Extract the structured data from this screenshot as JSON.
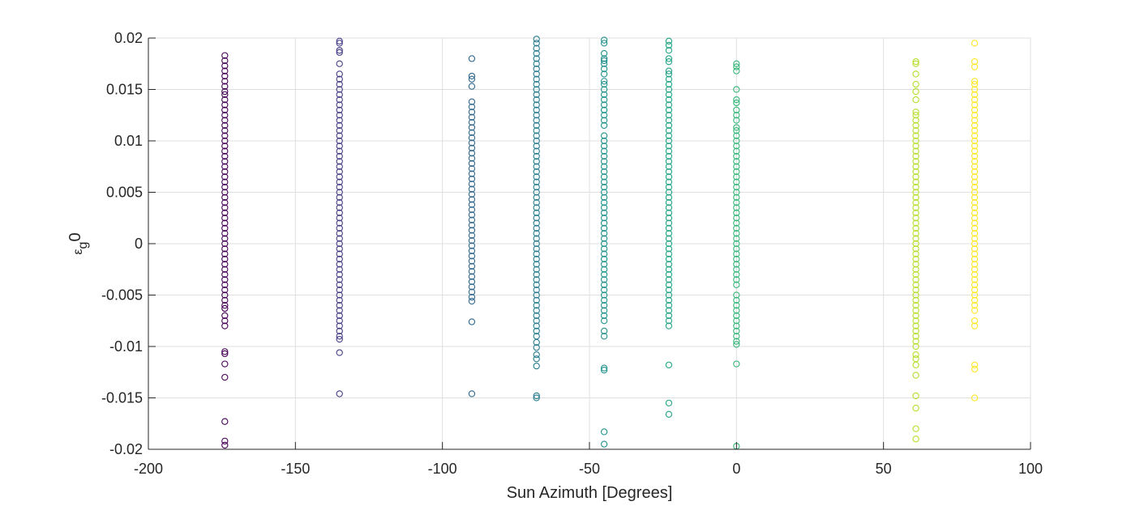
{
  "chart_data": {
    "type": "scatter",
    "title": "",
    "xlabel": "Sun Azimuth [Degrees]",
    "ylabel": {
      "base": "ε",
      "subscript": "g",
      "suffix": "0"
    },
    "xlim": [
      -200,
      100
    ],
    "ylim": [
      -0.02,
      0.02
    ],
    "xticks": [
      -200,
      -150,
      -100,
      -50,
      0,
      50,
      100
    ],
    "xtick_labels": [
      "-200",
      "-150",
      "-100",
      "-50",
      "0",
      "50",
      "100"
    ],
    "yticks": [
      -0.02,
      -0.015,
      -0.01,
      -0.005,
      0,
      0.005,
      0.01,
      0.015,
      0.02
    ],
    "ytick_labels": [
      "-0.02",
      "-0.015",
      "-0.01",
      "-0.005",
      "0",
      "0.005",
      "0.01",
      "0.015",
      "0.02"
    ],
    "grid": true,
    "marker": "open-circle",
    "colormap": "viridis",
    "series": [
      {
        "x": -174,
        "color": "#440154",
        "y": [
          0.0183,
          0.0178,
          0.0173,
          0.0168,
          0.0163,
          0.0158,
          0.0153,
          0.0148,
          0.0145,
          0.014,
          0.0135,
          0.013,
          0.0125,
          0.012,
          0.0115,
          0.011,
          0.0105,
          0.01,
          0.0095,
          0.009,
          0.0085,
          0.008,
          0.0075,
          0.007,
          0.0065,
          0.006,
          0.0055,
          0.005,
          0.0045,
          0.004,
          0.0035,
          0.003,
          0.0025,
          0.002,
          0.0015,
          0.001,
          0.0005,
          0,
          -0.0005,
          -0.001,
          -0.0015,
          -0.002,
          -0.0025,
          -0.003,
          -0.0035,
          -0.004,
          -0.0045,
          -0.005,
          -0.0055,
          -0.006,
          -0.0063,
          -0.007,
          -0.0075,
          -0.008,
          -0.0105,
          -0.0107,
          -0.0117,
          -0.013,
          -0.0173,
          -0.0192,
          -0.0196
        ]
      },
      {
        "x": -135,
        "color": "#433d84",
        "y": [
          0.0197,
          0.0195,
          0.0188,
          0.0186,
          0.0175,
          0.0165,
          0.016,
          0.0155,
          0.015,
          0.0145,
          0.014,
          0.0135,
          0.013,
          0.0125,
          0.012,
          0.0115,
          0.011,
          0.0105,
          0.01,
          0.0095,
          0.009,
          0.0085,
          0.008,
          0.0075,
          0.007,
          0.0065,
          0.006,
          0.0055,
          0.005,
          0.0045,
          0.004,
          0.0035,
          0.003,
          0.0025,
          0.002,
          0.0015,
          0.001,
          0.0005,
          0,
          -0.0005,
          -0.001,
          -0.0015,
          -0.002,
          -0.0025,
          -0.003,
          -0.0035,
          -0.004,
          -0.0045,
          -0.005,
          -0.0055,
          -0.006,
          -0.0065,
          -0.007,
          -0.0075,
          -0.008,
          -0.0085,
          -0.009,
          -0.0093,
          -0.0106,
          -0.0146
        ]
      },
      {
        "x": -90,
        "color": "#31688e",
        "y": [
          0.018,
          0.0163,
          0.016,
          0.0153,
          0.0138,
          0.0133,
          0.0128,
          0.0123,
          0.0118,
          0.0113,
          0.0108,
          0.0103,
          0.0098,
          0.0093,
          0.0088,
          0.0083,
          0.0078,
          0.0073,
          0.0068,
          0.0063,
          0.0058,
          0.0053,
          0.0048,
          0.0043,
          0.0038,
          0.0033,
          0.0028,
          0.0023,
          0.0018,
          0.0013,
          0.0008,
          0.0003,
          -0.0002,
          -0.0007,
          -0.0012,
          -0.0017,
          -0.0022,
          -0.0027,
          -0.0032,
          -0.0037,
          -0.0042,
          -0.0047,
          -0.0052,
          -0.0056,
          -0.0076,
          -0.0146
        ]
      },
      {
        "x": -68,
        "color": "#287c8e",
        "y": [
          0.0199,
          0.0195,
          0.019,
          0.0185,
          0.018,
          0.0175,
          0.017,
          0.0165,
          0.016,
          0.0155,
          0.015,
          0.0145,
          0.014,
          0.0135,
          0.013,
          0.0125,
          0.012,
          0.0115,
          0.011,
          0.0105,
          0.01,
          0.0095,
          0.009,
          0.0085,
          0.008,
          0.0075,
          0.007,
          0.0065,
          0.006,
          0.0055,
          0.005,
          0.0045,
          0.004,
          0.0035,
          0.003,
          0.0025,
          0.002,
          0.0015,
          0.001,
          0.0005,
          0,
          -0.0005,
          -0.001,
          -0.0015,
          -0.002,
          -0.0025,
          -0.003,
          -0.0035,
          -0.004,
          -0.0045,
          -0.005,
          -0.0055,
          -0.006,
          -0.0065,
          -0.007,
          -0.0075,
          -0.008,
          -0.0085,
          -0.009,
          -0.0096,
          -0.0101,
          -0.0108,
          -0.0112,
          -0.0119,
          -0.0148,
          -0.015
        ]
      },
      {
        "x": -45,
        "color": "#21918c",
        "y": [
          0.0198,
          0.0195,
          0.0185,
          0.018,
          0.0178,
          0.0175,
          0.017,
          0.0165,
          0.0158,
          0.0155,
          0.015,
          0.0145,
          0.014,
          0.0135,
          0.013,
          0.0125,
          0.012,
          0.0115,
          0.0105,
          0.01,
          0.0095,
          0.009,
          0.0085,
          0.008,
          0.0075,
          0.007,
          0.0065,
          0.006,
          0.0055,
          0.005,
          0.0045,
          0.004,
          0.0035,
          0.003,
          0.0025,
          0.002,
          0.0015,
          0.001,
          0.0005,
          0,
          -0.0005,
          -0.001,
          -0.0015,
          -0.002,
          -0.0025,
          -0.003,
          -0.0035,
          -0.004,
          -0.0045,
          -0.005,
          -0.0055,
          -0.006,
          -0.0065,
          -0.007,
          -0.0075,
          -0.0085,
          -0.009,
          -0.0121,
          -0.0123,
          -0.0183,
          -0.0195
        ]
      },
      {
        "x": -23,
        "color": "#20a486",
        "y": [
          0.0197,
          0.0193,
          0.0188,
          0.018,
          0.0177,
          0.0168,
          0.0165,
          0.016,
          0.0155,
          0.015,
          0.0145,
          0.014,
          0.0135,
          0.013,
          0.0125,
          0.012,
          0.0115,
          0.011,
          0.0105,
          0.01,
          0.0095,
          0.009,
          0.0085,
          0.008,
          0.0075,
          0.007,
          0.0065,
          0.006,
          0.0055,
          0.005,
          0.0045,
          0.004,
          0.0035,
          0.003,
          0.0025,
          0.002,
          0.0015,
          0.001,
          0.0005,
          0,
          -0.0005,
          -0.001,
          -0.0015,
          -0.002,
          -0.0025,
          -0.003,
          -0.0035,
          -0.004,
          -0.0045,
          -0.005,
          -0.0055,
          -0.006,
          -0.0065,
          -0.007,
          -0.0075,
          -0.008,
          -0.0118,
          -0.0155,
          -0.0166
        ]
      },
      {
        "x": 0,
        "color": "#35b779",
        "y": [
          0.0175,
          0.0172,
          0.0168,
          0.015,
          0.014,
          0.0137,
          0.013,
          0.0125,
          0.012,
          0.0113,
          0.011,
          0.0105,
          0.01,
          0.0095,
          0.009,
          0.0085,
          0.008,
          0.0075,
          0.007,
          0.0065,
          0.006,
          0.0055,
          0.005,
          0.0045,
          0.004,
          0.0035,
          0.003,
          0.0025,
          0.002,
          0.0015,
          0.001,
          0.0005,
          0,
          -0.0005,
          -0.001,
          -0.0015,
          -0.002,
          -0.0025,
          -0.003,
          -0.0035,
          -0.004,
          -0.005,
          -0.0055,
          -0.006,
          -0.0065,
          -0.007,
          -0.0075,
          -0.008,
          -0.0085,
          -0.009,
          -0.0095,
          -0.0098,
          -0.0117,
          -0.0197
        ]
      },
      {
        "x": 61,
        "color": "#b5de2b",
        "y": [
          0.0177,
          0.0175,
          0.0165,
          0.0155,
          0.0148,
          0.014,
          0.0128,
          0.0125,
          0.012,
          0.0115,
          0.011,
          0.0105,
          0.01,
          0.0095,
          0.009,
          0.0085,
          0.008,
          0.0075,
          0.007,
          0.0065,
          0.006,
          0.0055,
          0.005,
          0.0045,
          0.004,
          0.0035,
          0.003,
          0.0025,
          0.002,
          0.0015,
          0.001,
          0.0005,
          0,
          -0.0005,
          -0.001,
          -0.0015,
          -0.002,
          -0.0025,
          -0.003,
          -0.0035,
          -0.004,
          -0.0045,
          -0.005,
          -0.0055,
          -0.006,
          -0.0065,
          -0.007,
          -0.0075,
          -0.008,
          -0.0085,
          -0.009,
          -0.0095,
          -0.01,
          -0.0108,
          -0.0112,
          -0.0118,
          -0.0128,
          -0.0148,
          -0.016,
          -0.018,
          -0.019
        ]
      },
      {
        "x": 81,
        "color": "#fde725",
        "y": [
          0.0195,
          0.0177,
          0.0172,
          0.0158,
          0.0155,
          0.015,
          0.0145,
          0.014,
          0.0135,
          0.013,
          0.0125,
          0.012,
          0.0115,
          0.011,
          0.0105,
          0.01,
          0.0095,
          0.009,
          0.0085,
          0.008,
          0.0075,
          0.007,
          0.0065,
          0.006,
          0.0055,
          0.005,
          0.0045,
          0.004,
          0.0035,
          0.003,
          0.0025,
          0.002,
          0.0015,
          0.001,
          0.0005,
          0,
          -0.0005,
          -0.001,
          -0.0015,
          -0.002,
          -0.0025,
          -0.003,
          -0.0035,
          -0.004,
          -0.0045,
          -0.005,
          -0.0055,
          -0.006,
          -0.0065,
          -0.0075,
          -0.008,
          -0.0118,
          -0.0122,
          -0.015
        ]
      }
    ]
  }
}
